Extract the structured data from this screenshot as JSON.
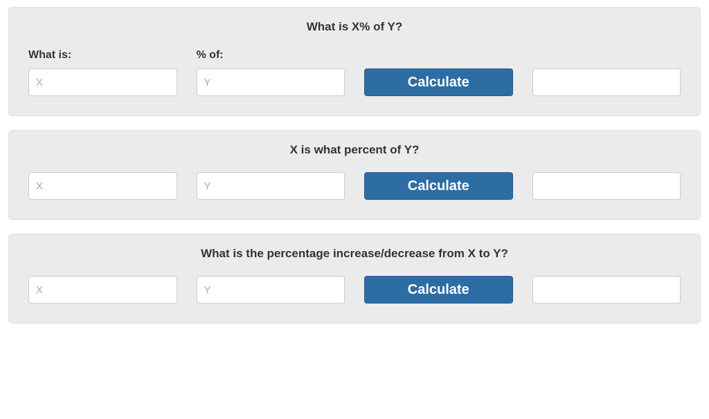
{
  "panel_bg_color": "#ebebeb",
  "button_bg_color": "#2e6da4",
  "button_text_color": "#ffffff",
  "input_bg_color": "#ffffff",
  "input_border_color": "#cccccc",
  "text_color": "#333333",
  "placeholder_color": "#aaaaaa",
  "calculate_label": "Calculate",
  "calculators": {
    "percent_of": {
      "title": "What is X% of Y?",
      "label_x": "What is:",
      "label_y": "% of:",
      "placeholder_x": "X",
      "placeholder_y": "Y",
      "value_x": "",
      "value_y": "",
      "result": ""
    },
    "what_percent": {
      "title": "X is what percent of Y?",
      "placeholder_x": "X",
      "placeholder_y": "Y",
      "value_x": "",
      "value_y": "",
      "result": ""
    },
    "percent_change": {
      "title": "What is the percentage increase/decrease from X to Y?",
      "placeholder_x": "X",
      "placeholder_y": "Y",
      "value_x": "",
      "value_y": "",
      "result": ""
    }
  }
}
